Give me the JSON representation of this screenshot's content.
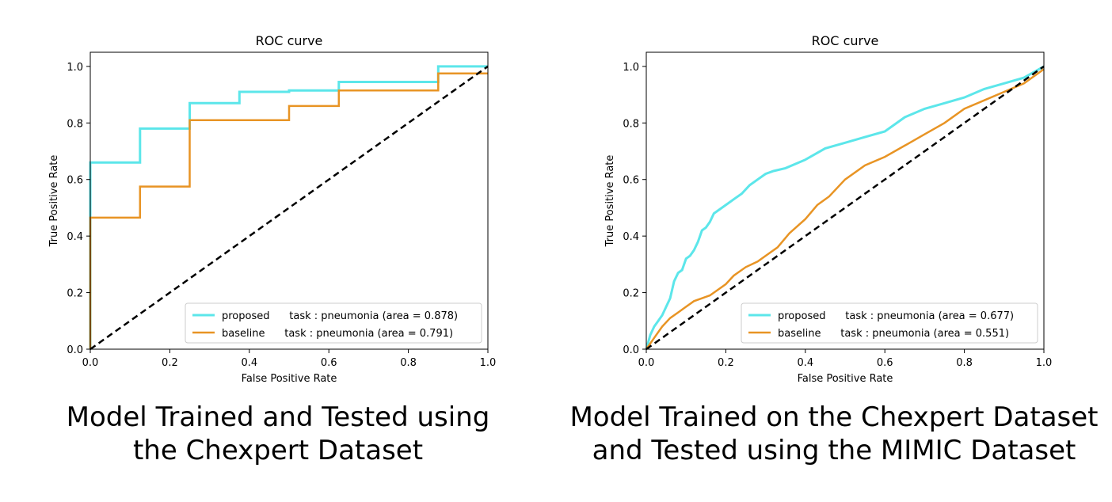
{
  "colors": {
    "proposed": "#5ce6ea",
    "baseline": "#e89424",
    "diagonal": "#000000"
  },
  "chart_data": [
    {
      "type": "line",
      "title": "ROC curve",
      "xlabel": "False Positive Rate",
      "ylabel": "True Positive Rate",
      "xlim": [
        0,
        1
      ],
      "ylim": [
        0,
        1.05
      ],
      "xticks": [
        "0.0",
        "0.2",
        "0.4",
        "0.6",
        "0.8",
        "1.0"
      ],
      "yticks": [
        "0.0",
        "0.2",
        "0.4",
        "0.6",
        "0.8",
        "1.0"
      ],
      "grid": false,
      "legend_position": "lower-right",
      "series": [
        {
          "name": "proposed      task : pneumonia (area = 0.878)",
          "color": "#5ce6ea",
          "x": [
            0,
            0,
            0.125,
            0.125,
            0.25,
            0.25,
            0.375,
            0.375,
            0.5,
            0.5,
            0.625,
            0.625,
            0.875,
            0.875,
            1.0
          ],
          "y": [
            0,
            0.66,
            0.66,
            0.78,
            0.78,
            0.87,
            0.87,
            0.91,
            0.91,
            0.915,
            0.915,
            0.945,
            0.945,
            1.0,
            1.0
          ]
        },
        {
          "name": "baseline      task : pneumonia (area = 0.791)",
          "color": "#e89424",
          "x": [
            0,
            0,
            0.125,
            0.125,
            0.25,
            0.25,
            0.5,
            0.5,
            0.625,
            0.625,
            0.875,
            0.875,
            1.0
          ],
          "y": [
            0,
            0.465,
            0.465,
            0.575,
            0.575,
            0.81,
            0.81,
            0.86,
            0.86,
            0.915,
            0.915,
            0.975,
            0.975
          ]
        }
      ],
      "diagonal": {
        "x": [
          0,
          1
        ],
        "y": [
          0,
          1
        ]
      }
    },
    {
      "type": "line",
      "title": "ROC curve",
      "xlabel": "False Positive Rate",
      "ylabel": "True Positive Rate",
      "xlim": [
        0,
        1
      ],
      "ylim": [
        0,
        1.05
      ],
      "xticks": [
        "0.0",
        "0.2",
        "0.4",
        "0.6",
        "0.8",
        "1.0"
      ],
      "yticks": [
        "0.0",
        "0.2",
        "0.4",
        "0.6",
        "0.8",
        "1.0"
      ],
      "grid": false,
      "legend_position": "lower-right",
      "series": [
        {
          "name": "proposed      task : pneumonia (area = 0.677)",
          "color": "#5ce6ea",
          "x": [
            0,
            0.01,
            0.02,
            0.03,
            0.04,
            0.05,
            0.06,
            0.07,
            0.08,
            0.09,
            0.1,
            0.11,
            0.12,
            0.13,
            0.14,
            0.15,
            0.16,
            0.17,
            0.18,
            0.2,
            0.22,
            0.24,
            0.26,
            0.28,
            0.3,
            0.32,
            0.35,
            0.4,
            0.45,
            0.5,
            0.55,
            0.6,
            0.65,
            0.7,
            0.75,
            0.8,
            0.85,
            0.9,
            0.95,
            1.0
          ],
          "y": [
            0,
            0.05,
            0.08,
            0.1,
            0.12,
            0.15,
            0.18,
            0.24,
            0.27,
            0.28,
            0.32,
            0.33,
            0.35,
            0.38,
            0.42,
            0.43,
            0.45,
            0.48,
            0.49,
            0.51,
            0.53,
            0.55,
            0.58,
            0.6,
            0.62,
            0.63,
            0.64,
            0.67,
            0.71,
            0.73,
            0.75,
            0.77,
            0.82,
            0.85,
            0.87,
            0.89,
            0.92,
            0.94,
            0.96,
            1.0
          ]
        },
        {
          "name": "baseline      task : pneumonia (area = 0.551)",
          "color": "#e89424",
          "x": [
            0,
            0.02,
            0.04,
            0.06,
            0.08,
            0.1,
            0.12,
            0.14,
            0.16,
            0.18,
            0.2,
            0.22,
            0.25,
            0.28,
            0.3,
            0.33,
            0.36,
            0.4,
            0.43,
            0.46,
            0.5,
            0.55,
            0.6,
            0.65,
            0.7,
            0.75,
            0.8,
            0.85,
            0.9,
            0.95,
            1.0
          ],
          "y": [
            0,
            0.04,
            0.08,
            0.11,
            0.13,
            0.15,
            0.17,
            0.18,
            0.19,
            0.21,
            0.23,
            0.26,
            0.29,
            0.31,
            0.33,
            0.36,
            0.41,
            0.46,
            0.51,
            0.54,
            0.6,
            0.65,
            0.68,
            0.72,
            0.76,
            0.8,
            0.85,
            0.88,
            0.91,
            0.94,
            0.99
          ]
        }
      ],
      "diagonal": {
        "x": [
          0,
          1
        ],
        "y": [
          0,
          1
        ]
      }
    }
  ],
  "captions": [
    {
      "line1": "Model Trained and Tested using",
      "line2": "the Chexpert Dataset"
    },
    {
      "line1": "Model Trained on the Chexpert Dataset",
      "line2": "and Tested using the MIMIC Dataset"
    }
  ]
}
